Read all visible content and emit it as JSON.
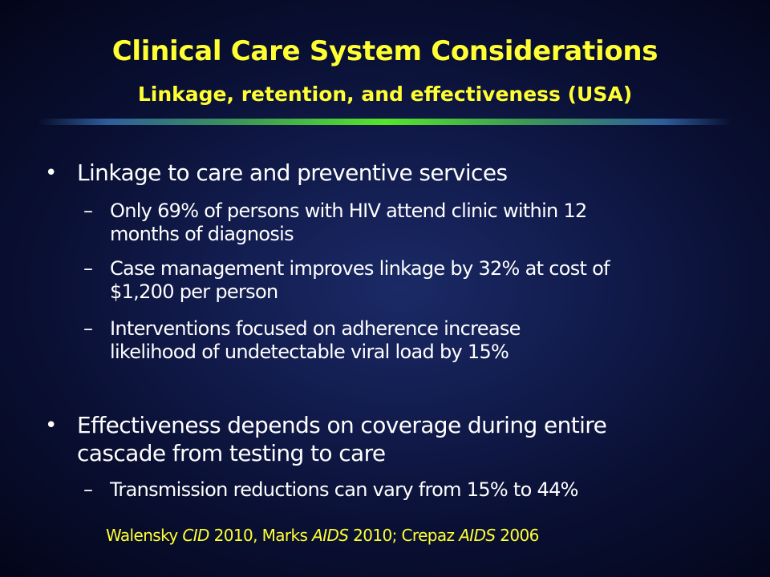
{
  "slide": {
    "title": "Clinical Care System Considerations",
    "subtitle": "Linkage, retention, and effectiveness (USA)",
    "bullets": [
      {
        "text": "Linkage to care and preventive services",
        "sub": [
          {
            "line1": "Only 69% of persons with HIV attend clinic within 12",
            "line2": "months of diagnosis"
          },
          {
            "line1": "Case management improves linkage by 32% at cost of",
            "line2": "$1,200 per person"
          },
          {
            "line1": "Interventions focused on adherence increase",
            "line2": "likelihood of undetectable viral load by 15%"
          }
        ]
      },
      {
        "line1": "Effectiveness depends on coverage during entire",
        "line2": "cascade from testing to care",
        "sub": [
          {
            "line1": "Transmission reductions can vary from 15% to 44%"
          }
        ]
      }
    ],
    "citation": {
      "a1": "Walensky ",
      "a1_journal": "CID",
      "a1_year": " 2010, Marks ",
      "a2_journal": "AIDS",
      "a2_year": " 2010; Crepaz ",
      "a3_journal": "AIDS",
      "a3_year": " 2006"
    },
    "colors": {
      "title": "#ffff33",
      "body_text": "#ffffff",
      "background": "#121c4e",
      "divider_center": "#55e62a"
    },
    "bullet_glyph": "•",
    "dash_glyph": "–"
  }
}
